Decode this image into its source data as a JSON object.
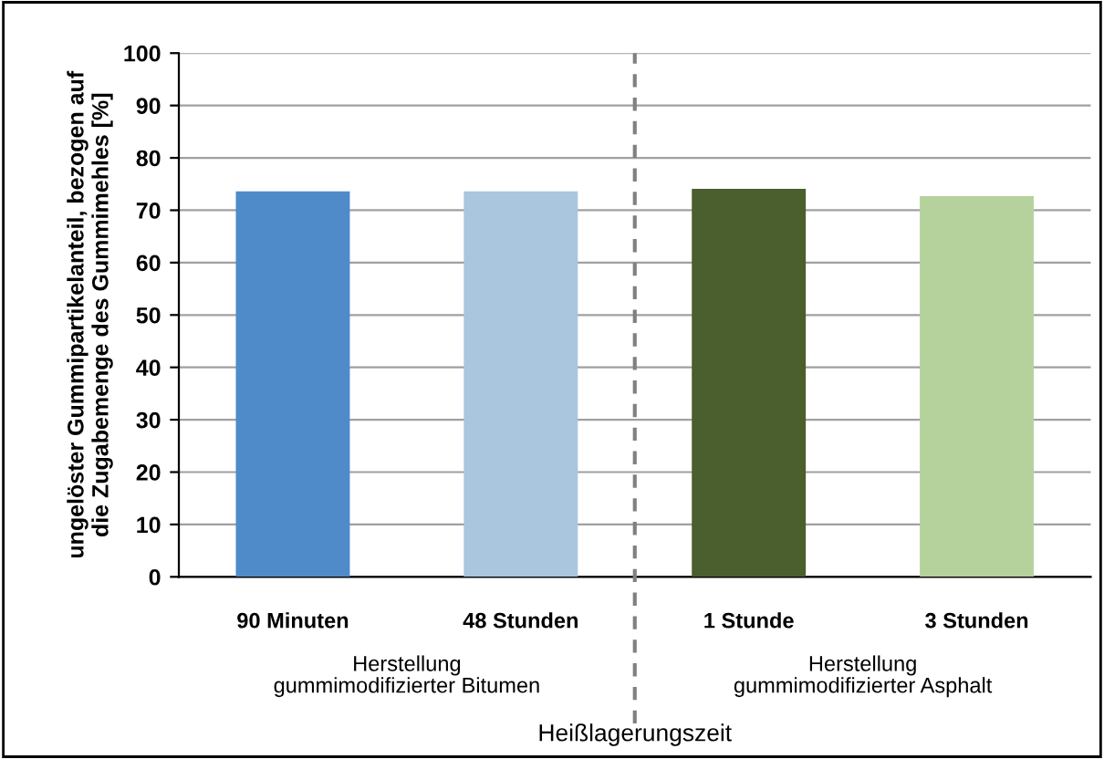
{
  "chart_data": {
    "type": "bar",
    "categories": [
      "90 Minuten",
      "48 Stunden",
      "1 Stunde",
      "3 Stunden"
    ],
    "values": [
      73.6,
      73.6,
      74.1,
      72.7
    ],
    "colors": [
      "#4f8bc9",
      "#aac5de",
      "#4a5e2e",
      "#b6d29c"
    ],
    "xlabel": "Heißlagerungszeit",
    "ylabel": "ungelöster Gummipartikelanteil, bezogen auf\ndie Zugabemenge des Gummimehles [%]",
    "ylim": [
      0,
      100
    ],
    "yticks": [
      0,
      10,
      20,
      30,
      40,
      50,
      60,
      70,
      80,
      90,
      100
    ],
    "grid": "y",
    "annotations": [
      "Herstellung\ngummimodifizierter Bitumen",
      "Herstellung\ngummimodifizierter Asphalt"
    ]
  }
}
